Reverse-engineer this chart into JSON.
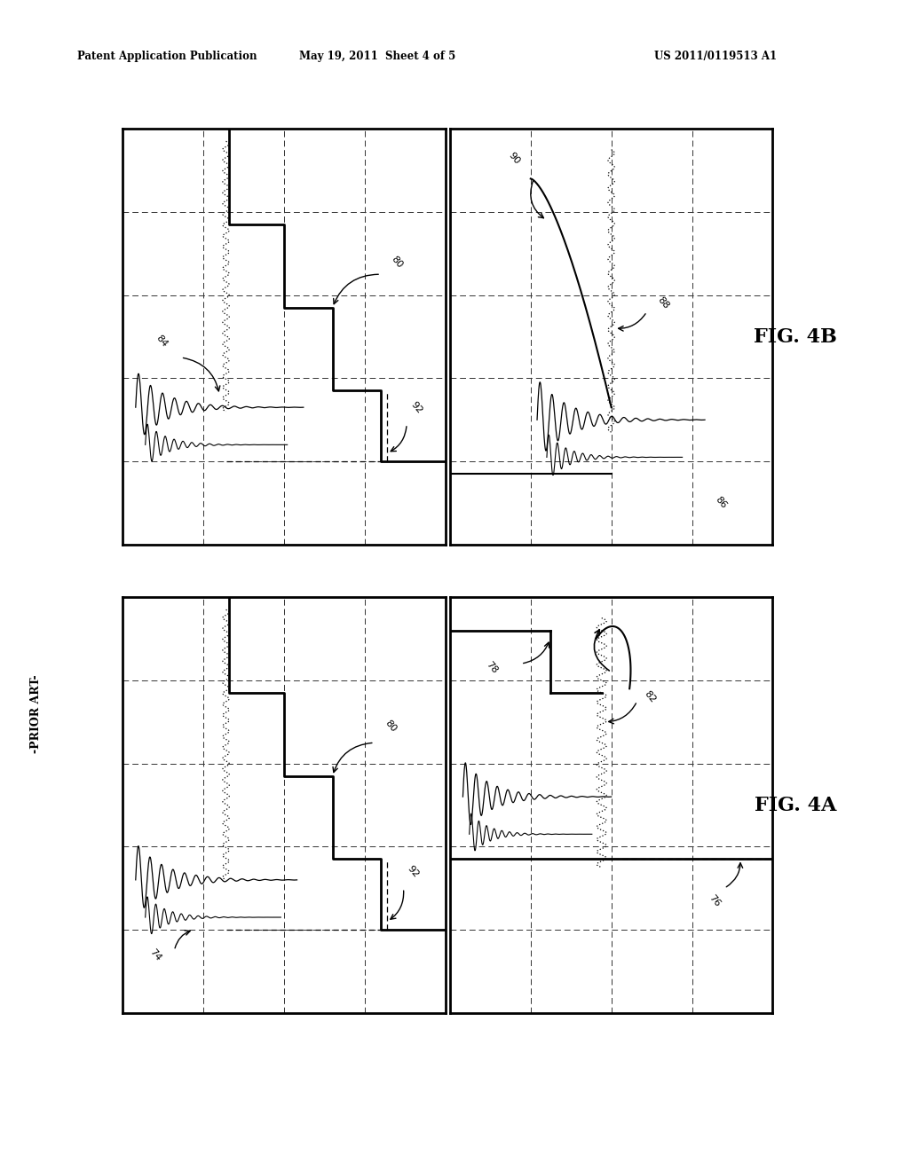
{
  "header_left": "Patent Application Publication",
  "header_center": "May 19, 2011  Sheet 4 of 5",
  "header_right": "US 2011/0119513 A1",
  "fig4b_label": "FIG. 4B",
  "fig4a_label": "FIG. 4A",
  "prior_art_label": "-PRIOR ART-",
  "background_color": "#ffffff",
  "panels": {
    "tl": [
      0.135,
      0.535,
      0.355,
      0.355
    ],
    "tr": [
      0.495,
      0.535,
      0.355,
      0.355
    ],
    "bl": [
      0.135,
      0.135,
      0.355,
      0.355
    ],
    "br": [
      0.495,
      0.135,
      0.355,
      0.355
    ]
  },
  "grid_rows": 5,
  "grid_cols": 4
}
